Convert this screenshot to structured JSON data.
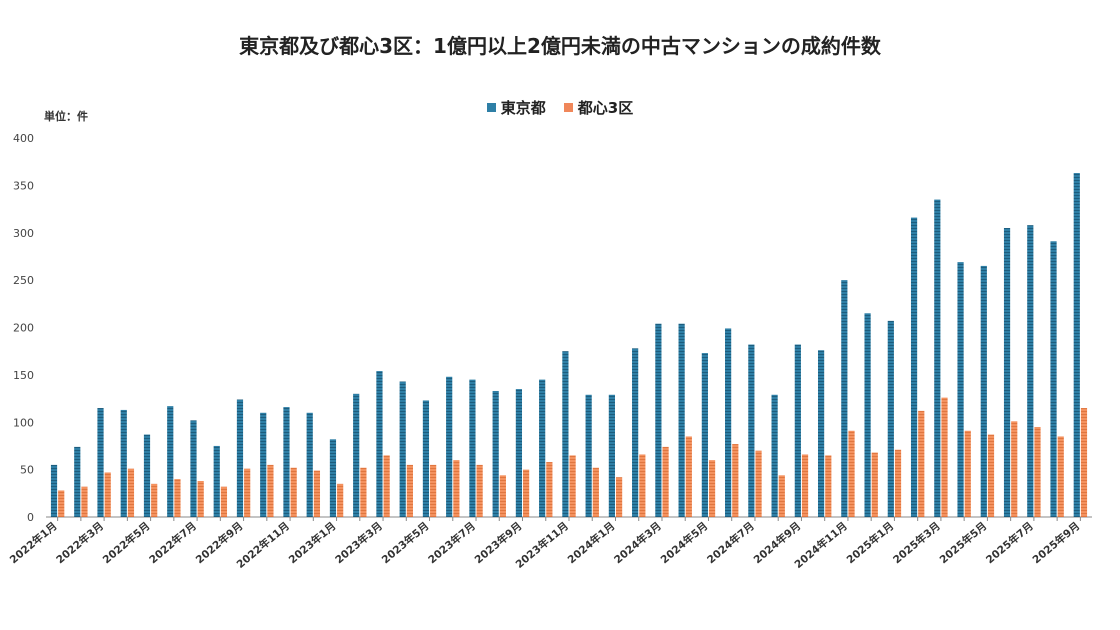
{
  "chart_data": {
    "type": "bar",
    "title": "東京都及び都心3区：1億円以上2億円未満の中古マンションの成約件数",
    "unit_label": "単位：件",
    "xlabel": "",
    "ylabel": "",
    "ylim": [
      0,
      400
    ],
    "yticks": [
      0,
      50,
      100,
      150,
      200,
      250,
      300,
      350,
      400
    ],
    "categories": [
      "2022年1月",
      "2022年2月",
      "2022年3月",
      "2022年4月",
      "2022年5月",
      "2022年6月",
      "2022年7月",
      "2022年8月",
      "2022年9月",
      "2022年10月",
      "2022年11月",
      "2022年12月",
      "2023年1月",
      "2023年2月",
      "2023年3月",
      "2023年4月",
      "2023年5月",
      "2023年6月",
      "2023年7月",
      "2023年8月",
      "2023年9月",
      "2023年10月",
      "2023年11月",
      "2023年12月",
      "2024年1月",
      "2024年2月",
      "2024年3月",
      "2024年4月",
      "2024年5月",
      "2024年6月",
      "2024年7月",
      "2024年8月",
      "2024年9月",
      "2024年10月",
      "2024年11月",
      "2024年12月",
      "2025年1月",
      "2025年2月",
      "2025年3月",
      "2025年4月",
      "2025年5月",
      "2025年6月",
      "2025年7月",
      "2025年8月",
      "2025年9月"
    ],
    "tick_labels": [
      "2022年1月",
      "2022年3月",
      "2022年5月",
      "2022年7月",
      "2022年9月",
      "2022年11月",
      "2023年1月",
      "2023年3月",
      "2023年5月",
      "2023年7月",
      "2023年9月",
      "2023年11月",
      "2024年1月",
      "2024年3月",
      "2024年5月",
      "2024年7月",
      "2024年9月",
      "2024年11月",
      "2025年1月",
      "2025年3月",
      "2025年5月",
      "2025年7月",
      "2025年9月"
    ],
    "series": [
      {
        "name": "東京都",
        "color": "#2e7fa6",
        "values": [
          55,
          74,
          115,
          113,
          87,
          117,
          102,
          75,
          124,
          110,
          116,
          110,
          82,
          130,
          154,
          143,
          123,
          148,
          145,
          133,
          135,
          145,
          175,
          129,
          129,
          178,
          204,
          204,
          173,
          199,
          182,
          129,
          182,
          176,
          250,
          215,
          207,
          316,
          335,
          269,
          265,
          305,
          308,
          291,
          363
        ]
      },
      {
        "name": "都心3区",
        "color": "#f0875a",
        "values": [
          28,
          32,
          47,
          51,
          35,
          40,
          38,
          32,
          51,
          55,
          52,
          49,
          35,
          52,
          65,
          55,
          55,
          60,
          55,
          44,
          50,
          58,
          65,
          52,
          42,
          66,
          74,
          85,
          60,
          77,
          70,
          44,
          66,
          65,
          91,
          68,
          71,
          112,
          126,
          91,
          87,
          101,
          95,
          85,
          115
        ]
      }
    ]
  }
}
